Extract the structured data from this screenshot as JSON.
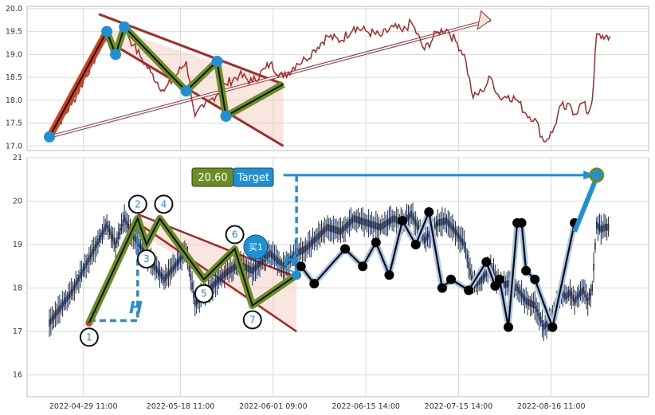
{
  "colors": {
    "price_line": "#a52a2a",
    "channel": "#a52a2a",
    "channel_fill": "#f4c7bb",
    "wave_fill": "#6b8e23",
    "impulse": "#d4401f",
    "marker": "#1f8fd6",
    "zigzag": "#0a0a0a",
    "zigzag_glow": "#a9c6e8",
    "target_bg": "#6b8e23",
    "target_label_bg": "#1f8fd6",
    "guide": "#1f8fd6",
    "candle": "#1d2b4d"
  },
  "chart_data": [
    {
      "type": "line",
      "panel": "top",
      "ylim": [
        16.9,
        20.05
      ],
      "yticks": [
        "17.0",
        "17.5",
        "18.0",
        "18.5",
        "19.0",
        "19.5",
        "20.0"
      ],
      "ytick_values": [
        17.0,
        17.5,
        18.0,
        18.5,
        19.0,
        19.5,
        20.0
      ],
      "xlim": [
        0,
        130
      ],
      "grid": true,
      "series_pivots": {
        "x": [
          0,
          5,
          13,
          15,
          17,
          19,
          21,
          23,
          26,
          28,
          31,
          33,
          35,
          37,
          40,
          43,
          46,
          49,
          50,
          53,
          56,
          58,
          60,
          63,
          66,
          69,
          72,
          75,
          78,
          80,
          82,
          85,
          88,
          90,
          92,
          94,
          96,
          98,
          100,
          102,
          104,
          106,
          108,
          110,
          112,
          114,
          116,
          117,
          118,
          119,
          120,
          121,
          122,
          123,
          124,
          125,
          126,
          127
        ],
        "y": [
          17.2,
          17.9,
          19.45,
          19.0,
          19.6,
          19.2,
          18.9,
          18.6,
          18.2,
          18.45,
          18.85,
          17.65,
          17.85,
          18.05,
          18.35,
          18.55,
          18.4,
          18.7,
          18.8,
          18.5,
          18.8,
          18.9,
          19.1,
          19.4,
          19.3,
          19.6,
          19.5,
          19.4,
          19.6,
          19.5,
          19.7,
          19.1,
          19.5,
          19.55,
          19.3,
          19.0,
          18.05,
          18.2,
          18.5,
          18.05,
          18.1,
          18.0,
          17.7,
          17.6,
          17.1,
          17.3,
          17.9,
          17.8,
          17.9,
          17.7,
          17.85,
          17.95,
          17.7,
          18.0,
          19.45,
          19.35,
          19.4,
          19.4
        ]
      }
    },
    {
      "type": "line",
      "panel": "bottom",
      "ylim": [
        15.5,
        21.0
      ],
      "yticks": [
        "16",
        "17",
        "18",
        "19",
        "20",
        "21"
      ],
      "ytick_values": [
        16,
        17,
        18,
        19,
        20,
        21
      ],
      "xlim": [
        0,
        130
      ],
      "x_tick_labels": [
        "2022-04-29 11:00",
        "2022-05-18 11:00",
        "2022-06-01 09:00",
        "2022-06-15 14:00",
        "2022-07-15 14:00",
        "2022-08-16 11:00"
      ],
      "x_tick_positions": [
        5,
        27,
        48,
        69,
        90,
        111
      ],
      "grid": true,
      "zigzag": {
        "x": [
          57,
          60,
          67,
          71,
          74,
          77,
          80,
          83,
          86,
          89,
          91,
          95,
          99,
          101,
          102,
          104,
          106,
          107,
          108,
          110,
          114,
          119
        ],
        "y": [
          18.5,
          18.1,
          18.9,
          18.5,
          19.05,
          18.3,
          19.55,
          19.0,
          19.75,
          18.0,
          18.2,
          17.95,
          18.6,
          18.05,
          18.2,
          17.1,
          19.5,
          19.5,
          18.4,
          18.2,
          17.1,
          19.5
        ]
      },
      "elliott_points": {
        "labels": [
          "1",
          "2",
          "3",
          "4",
          "5",
          "6",
          "7"
        ],
        "x": [
          9,
          20,
          22,
          25,
          35,
          42,
          46
        ],
        "y": [
          17.2,
          19.6,
          19.0,
          19.6,
          18.2,
          18.9,
          17.6
        ]
      },
      "target": {
        "value": "20.60",
        "label": "Target"
      },
      "buy_label": "买1",
      "h_label": "H"
    }
  ]
}
